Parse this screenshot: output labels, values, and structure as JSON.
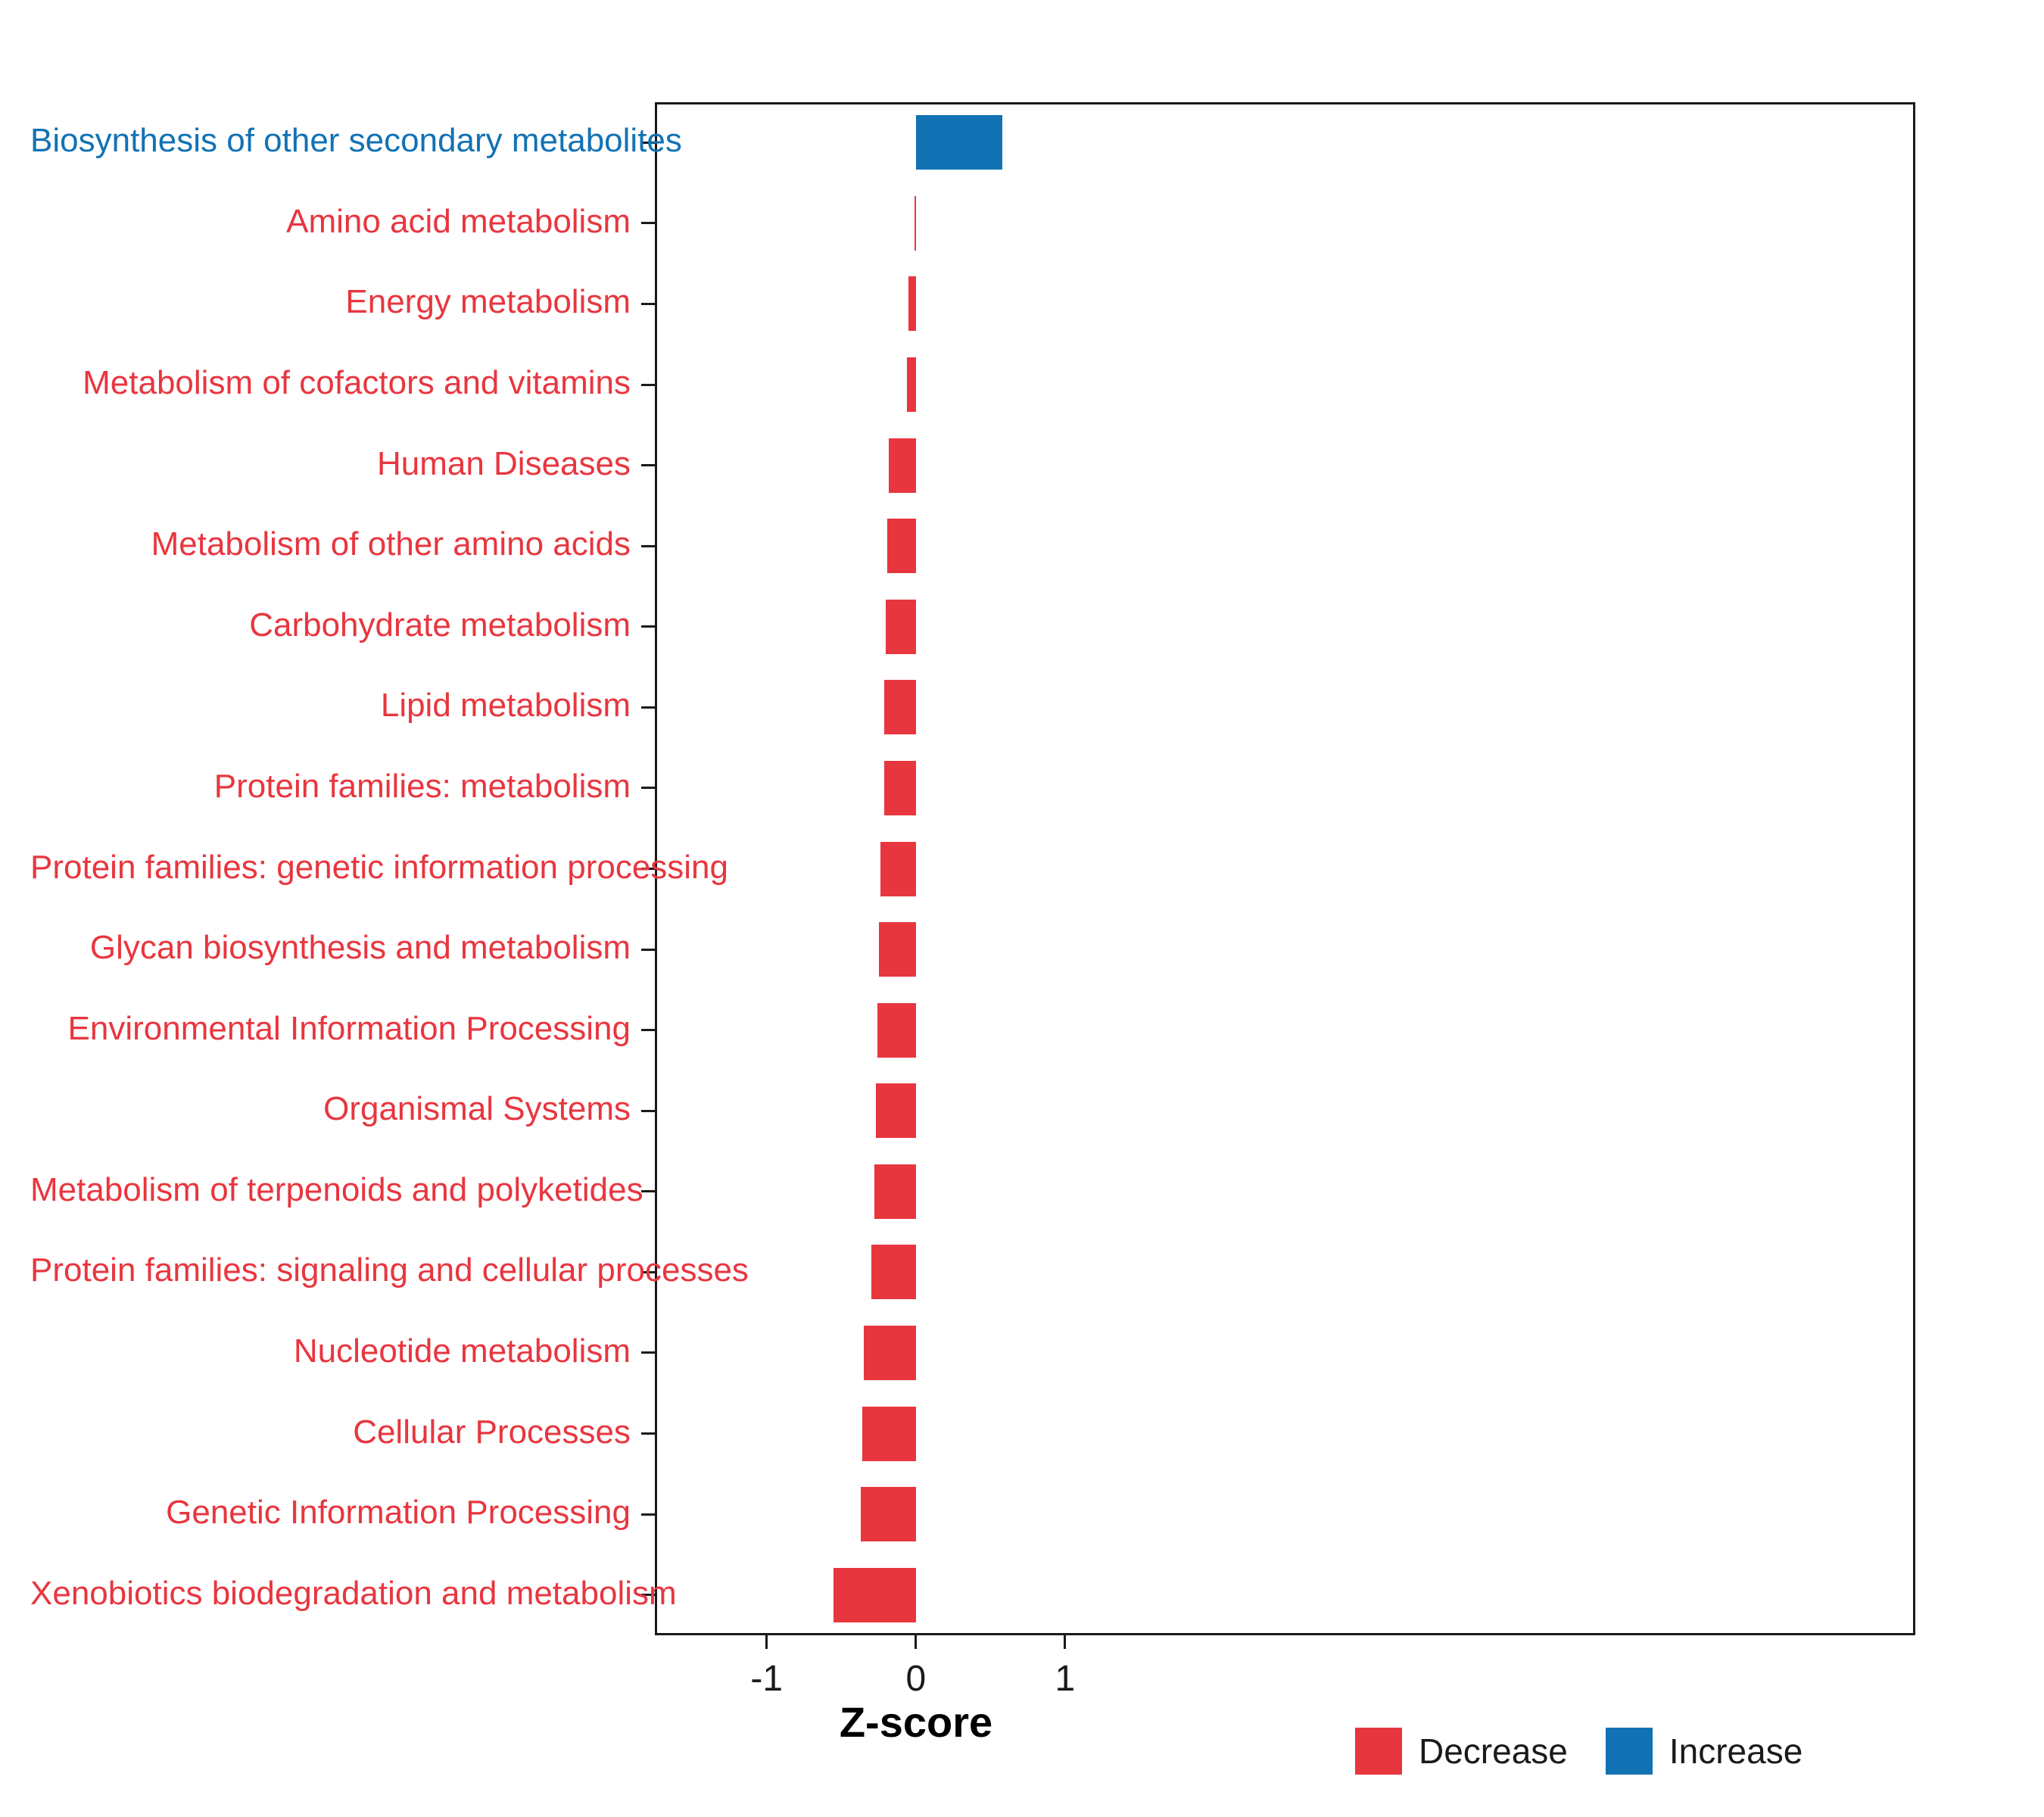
{
  "chart_data": {
    "type": "bar",
    "orientation": "horizontal",
    "title": "",
    "xlabel": "Z-score",
    "ylabel": "",
    "grid": false,
    "legend_position": "bottom-right",
    "xlim": [
      -1.75,
      6.7
    ],
    "xticks": [
      {
        "value": -1,
        "label": "-1"
      },
      {
        "value": 0,
        "label": "0"
      },
      {
        "value": 1,
        "label": "1"
      }
    ],
    "categories": [
      "Biosynthesis of other secondary metabolites",
      "Amino acid metabolism",
      "Energy metabolism",
      "Metabolism of cofactors and vitamins",
      "Human Diseases",
      "Metabolism of other amino acids",
      "Carbohydrate metabolism",
      "Lipid metabolism",
      "Protein families: metabolism",
      "Protein families: genetic information processing",
      "Glycan biosynthesis and metabolism",
      "Environmental Information Processing",
      "Organismal Systems",
      "Metabolism of terpenoids and polyketides",
      "Protein families: signaling and cellular processes",
      "Nucleotide metabolism",
      "Cellular Processes",
      "Genetic Information Processing",
      "Xenobiotics biodegradation and metabolism"
    ],
    "values": [
      0.58,
      -0.01,
      -0.05,
      -0.06,
      -0.18,
      -0.19,
      -0.2,
      -0.21,
      -0.21,
      -0.24,
      -0.25,
      -0.26,
      -0.27,
      -0.28,
      -0.3,
      -0.35,
      -0.36,
      -0.37,
      -0.55
    ],
    "groups": [
      "Increase",
      "Decrease",
      "Decrease",
      "Decrease",
      "Decrease",
      "Decrease",
      "Decrease",
      "Decrease",
      "Decrease",
      "Decrease",
      "Decrease",
      "Decrease",
      "Decrease",
      "Decrease",
      "Decrease",
      "Decrease",
      "Decrease",
      "Decrease",
      "Decrease"
    ],
    "colors": {
      "increase": "#1272B4",
      "decrease": "#E8363F"
    },
    "legend": [
      {
        "label": "Decrease",
        "color": "#E8363F"
      },
      {
        "label": "Increase",
        "color": "#1272B4"
      }
    ]
  }
}
